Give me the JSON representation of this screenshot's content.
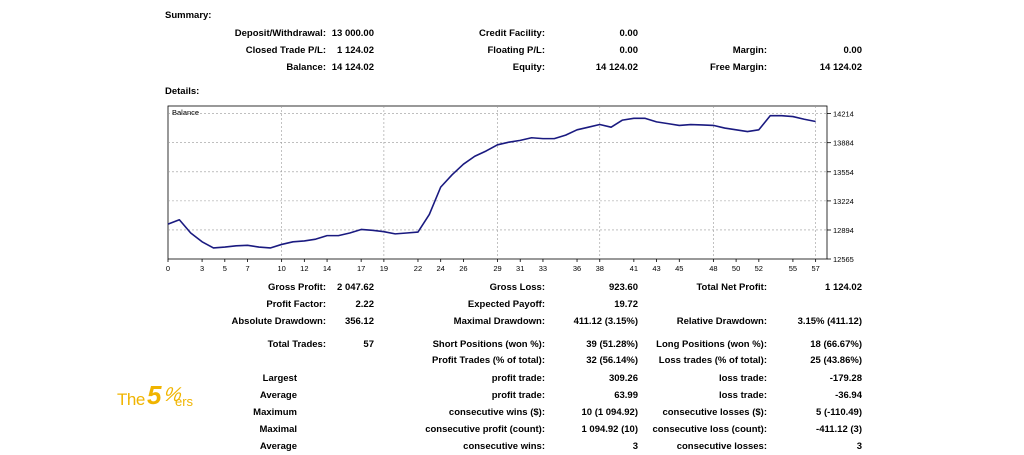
{
  "summary": {
    "title": "Summary:",
    "deposit_label": "Deposit/Withdrawal:",
    "deposit_value": "13 000.00",
    "credit_label": "Credit Facility:",
    "credit_value": "0.00",
    "closed_pl_label": "Closed Trade P/L:",
    "closed_pl_value": "1 124.02",
    "floating_label": "Floating P/L:",
    "floating_value": "0.00",
    "margin_label": "Margin:",
    "margin_value": "0.00",
    "balance_label": "Balance:",
    "balance_value": "14 124.02",
    "equity_label": "Equity:",
    "equity_value": "14 124.02",
    "free_margin_label": "Free Margin:",
    "free_margin_value": "14 124.02"
  },
  "details": {
    "title": "Details:"
  },
  "chart_data": {
    "type": "line",
    "title": "Balance",
    "line_color": "#1a1a80",
    "grid": true,
    "xlim": [
      0,
      58
    ],
    "ylim": [
      12565,
      14300
    ],
    "x_ticks": [
      "0",
      "3",
      "5",
      "7",
      "10",
      "12",
      "14",
      "17",
      "19",
      "22",
      "24",
      "26",
      "29",
      "31",
      "33",
      "36",
      "38",
      "41",
      "43",
      "45",
      "48",
      "50",
      "52",
      "55",
      "57"
    ],
    "y_ticks": [
      12565,
      12894,
      13224,
      13554,
      13884,
      14214
    ],
    "series": [
      {
        "x": [
          0,
          1,
          2,
          3,
          4,
          5,
          6,
          7,
          8,
          9,
          10,
          11,
          12,
          13,
          14,
          15,
          16,
          17,
          18,
          19,
          20,
          21,
          22,
          23,
          24,
          25,
          26,
          27,
          28,
          29,
          30,
          31,
          32,
          33,
          34,
          35,
          36,
          37,
          38,
          39,
          40,
          41,
          42,
          43,
          44,
          45,
          46,
          47,
          48,
          49,
          50,
          51,
          52,
          53,
          54,
          55,
          56,
          57
        ],
        "values": [
          12960,
          13010,
          12860,
          12760,
          12690,
          12700,
          12715,
          12720,
          12700,
          12690,
          12730,
          12760,
          12770,
          12790,
          12830,
          12830,
          12860,
          12900,
          12890,
          12875,
          12850,
          12860,
          12870,
          13070,
          13380,
          13520,
          13640,
          13730,
          13790,
          13860,
          13890,
          13910,
          13940,
          13930,
          13930,
          13970,
          14030,
          14060,
          14090,
          14060,
          14140,
          14160,
          14160,
          14120,
          14100,
          14080,
          14090,
          14085,
          14080,
          14050,
          14030,
          14010,
          14030,
          14190,
          14190,
          14180,
          14150,
          14124
        ]
      }
    ]
  },
  "stats": {
    "gross_profit_label": "Gross Profit:",
    "gross_profit_value": "2 047.62",
    "gross_loss_label": "Gross Loss:",
    "gross_loss_value": "923.60",
    "total_net_label": "Total Net Profit:",
    "total_net_value": "1 124.02",
    "profit_factor_label": "Profit Factor:",
    "profit_factor_value": "2.22",
    "expected_payoff_label": "Expected Payoff:",
    "expected_payoff_value": "19.72",
    "abs_dd_label": "Absolute Drawdown:",
    "abs_dd_value": "356.12",
    "max_dd_label": "Maximal Drawdown:",
    "max_dd_value": "411.12 (3.15%)",
    "rel_dd_label": "Relative Drawdown:",
    "rel_dd_value": "3.15% (411.12)",
    "total_trades_label": "Total Trades:",
    "total_trades_value": "57",
    "short_label": "Short Positions (won %):",
    "short_value": "39 (51.28%)",
    "long_label": "Long Positions (won %):",
    "long_value": "18 (66.67%)",
    "profit_trades_label": "Profit Trades (% of total):",
    "profit_trades_value": "32 (56.14%)",
    "loss_trades_label": "Loss trades (% of total):",
    "loss_trades_value": "25 (43.86%)",
    "largest_label": "Largest",
    "largest_profit_label": "profit trade:",
    "largest_profit_value": "309.26",
    "largest_loss_label": "loss trade:",
    "largest_loss_value": "-179.28",
    "average_label": "Average",
    "avg_profit_label": "profit trade:",
    "avg_profit_value": "63.99",
    "avg_loss_label": "loss trade:",
    "avg_loss_value": "-36.94",
    "maximum_label": "Maximum",
    "max_wins_label": "consecutive wins ($):",
    "max_wins_value": "10 (1 094.92)",
    "max_losses_label": "consecutive losses ($):",
    "max_losses_value": "5 (-110.49)",
    "maximal_label": "Maximal",
    "maximal_profit_label": "consecutive profit (count):",
    "maximal_profit_value": "1 094.92 (10)",
    "maximal_loss_label": "consecutive loss (count):",
    "maximal_loss_value": "-411.12 (3)",
    "average2_label": "Average",
    "avg_wins_label": "consecutive wins:",
    "avg_wins_value": "3",
    "avg_losses_label": "consecutive losses:",
    "avg_losses_value": "3"
  },
  "logo": {
    "text_the": "The",
    "text_five": "5",
    "text_pct": "%",
    "text_ers": "ers",
    "color": "#f0b400"
  }
}
